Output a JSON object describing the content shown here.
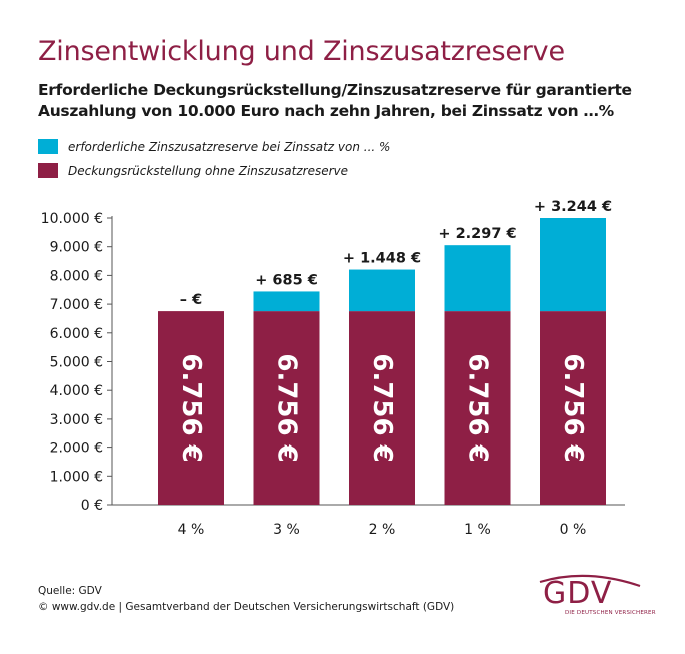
{
  "header": {
    "title": "Zinsentwicklung und Zinszusatzreserve",
    "subtitle_line1": "Erforderliche Deckungsrückstellung/Zinszusatzreserve für garantierte",
    "subtitle_line2": "Auszahlung von 10.000 Euro nach zehn Jahren, bei Zinssatz von …%"
  },
  "legend": {
    "reserve": "erforderliche Zinszusatzreserve bei Zinssatz von ... %",
    "base": "Deckungsrückstellung ohne Zinszusatzreserve"
  },
  "colors": {
    "reserve": "#00aed6",
    "base": "#8e1f45",
    "brand": "#8e1f45"
  },
  "chart_data": {
    "type": "bar",
    "stacked": true,
    "categories": [
      "4 %",
      "3 %",
      "2 %",
      "1 %",
      "0 %"
    ],
    "series": [
      {
        "name": "Deckungsrückstellung ohne Zinszusatzreserve",
        "values": [
          6756,
          6756,
          6756,
          6756,
          6756
        ]
      },
      {
        "name": "erforderliche Zinszusatzreserve bei Zinssatz von ... %",
        "values": [
          0,
          685,
          1448,
          2297,
          3244
        ]
      }
    ],
    "base_labels": [
      "6.756 €",
      "6.756 €",
      "6.756 €",
      "6.756 €",
      "6.756 €"
    ],
    "top_labels": [
      "– €",
      "+ 685 €",
      "+ 1.448 €",
      "+ 2.297 €",
      "+ 3.244 €"
    ],
    "ylim": [
      0,
      10000
    ],
    "yticks": [
      0,
      1000,
      2000,
      3000,
      4000,
      5000,
      6000,
      7000,
      8000,
      9000,
      10000
    ],
    "ytick_labels": [
      "0 €",
      "1.000 €",
      "2.000 €",
      "3.000 €",
      "4.000 €",
      "5.000 €",
      "6.000 €",
      "7.000 €",
      "8.000 €",
      "9.000 €",
      "10.000 €"
    ],
    "grid": false,
    "legend_position": "top-left"
  },
  "footer": {
    "source": "Quelle: GDV",
    "copyright": "© www.gdv.de | Gesamtverband der Deutschen Versicherungswirtschaft (GDV)"
  },
  "logo": {
    "text": "GDV",
    "subtext": "DIE DEUTSCHEN VERSICHERER"
  }
}
